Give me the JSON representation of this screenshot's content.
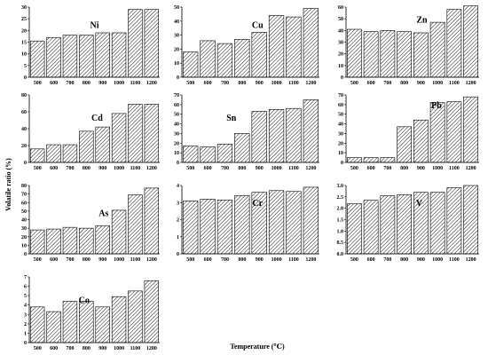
{
  "figure": {
    "xlabel": "Temperature (℃)",
    "ylabel": "Volatile ratio (%)"
  },
  "chart_data": [
    {
      "type": "bar",
      "title": "Ni",
      "categories": [
        "500",
        "600",
        "700",
        "800",
        "900",
        "1000",
        "1100",
        "1200"
      ],
      "values": [
        15.5,
        17,
        18,
        18,
        19,
        19,
        29,
        29
      ],
      "ylim": [
        0,
        30
      ],
      "yticks": [
        0,
        5,
        10,
        15,
        20,
        25,
        30
      ]
    },
    {
      "type": "bar",
      "title": "Cu",
      "categories": [
        "500",
        "600",
        "700",
        "800",
        "900",
        "1000",
        "1100",
        "1200"
      ],
      "values": [
        18,
        26,
        24,
        27,
        32,
        44,
        43,
        49
      ],
      "ylim": [
        0,
        50
      ],
      "yticks": [
        0,
        10,
        20,
        30,
        40,
        50
      ]
    },
    {
      "type": "bar",
      "title": "Zn",
      "categories": [
        "500",
        "600",
        "700",
        "800",
        "900",
        "1000",
        "1100",
        "1200"
      ],
      "values": [
        41,
        39,
        40,
        39,
        38,
        47,
        58,
        61
      ],
      "ylim": [
        0,
        60
      ],
      "yticks": [
        0,
        10,
        20,
        30,
        40,
        50,
        60
      ]
    },
    {
      "type": "bar",
      "title": "Cd",
      "categories": [
        "500",
        "600",
        "700",
        "800",
        "900",
        "1000",
        "1100",
        "1200"
      ],
      "values": [
        16,
        21,
        21,
        37,
        42,
        58,
        69,
        69
      ],
      "ylim": [
        0,
        80
      ],
      "yticks": [
        0,
        20,
        40,
        60,
        80
      ]
    },
    {
      "type": "bar",
      "title": "Sn",
      "categories": [
        "500",
        "600",
        "700",
        "800",
        "900",
        "1000",
        "1100",
        "1200"
      ],
      "values": [
        17,
        16,
        19,
        30,
        53,
        55,
        56,
        65
      ],
      "ylim": [
        0,
        70
      ],
      "yticks": [
        0,
        10,
        20,
        30,
        40,
        50,
        60,
        70
      ]
    },
    {
      "type": "bar",
      "title": "Pb",
      "categories": [
        "500",
        "600",
        "700",
        "800",
        "900",
        "1000",
        "1100",
        "1200"
      ],
      "values": [
        5,
        5,
        5,
        37,
        44,
        62,
        63,
        68
      ],
      "ylim": [
        0,
        70
      ],
      "yticks": [
        0,
        10,
        20,
        30,
        40,
        50,
        60,
        70
      ]
    },
    {
      "type": "bar",
      "title": "As",
      "categories": [
        "500",
        "600",
        "700",
        "800",
        "900",
        "1000",
        "1100",
        "1200"
      ],
      "values": [
        28,
        29,
        31,
        30,
        33,
        51,
        69,
        77
      ],
      "ylim": [
        0,
        80
      ],
      "yticks": [
        0,
        10,
        20,
        30,
        40,
        50,
        60,
        70,
        80
      ]
    },
    {
      "type": "bar",
      "title": "Cr",
      "categories": [
        "500",
        "600",
        "700",
        "800",
        "900",
        "1000",
        "1100",
        "1200"
      ],
      "values": [
        3.1,
        3.2,
        3.15,
        3.4,
        3.6,
        3.7,
        3.65,
        3.9
      ],
      "ylim": [
        0,
        4
      ],
      "yticks": [
        0,
        1,
        2,
        3,
        4
      ]
    },
    {
      "type": "bar",
      "title": "V",
      "categories": [
        "500",
        "600",
        "700",
        "800",
        "900",
        "1000",
        "1100",
        "1200"
      ],
      "values": [
        2.2,
        2.35,
        2.55,
        2.6,
        2.7,
        2.7,
        2.9,
        3.0
      ],
      "ylim": [
        0,
        3.0
      ],
      "yticks": [
        0,
        0.5,
        1.0,
        1.5,
        2.0,
        2.5,
        3.0
      ],
      "tick_decimals": 1
    },
    {
      "type": "bar",
      "title": "Co",
      "categories": [
        "500",
        "600",
        "700",
        "800",
        "900",
        "1000",
        "1100",
        "1200"
      ],
      "values": [
        3.8,
        3.3,
        4.4,
        4.4,
        3.8,
        4.9,
        5.5,
        6.6
      ],
      "ylim": [
        0,
        7
      ],
      "yticks": [
        0,
        1,
        2,
        3,
        4,
        5,
        6,
        7
      ]
    }
  ]
}
